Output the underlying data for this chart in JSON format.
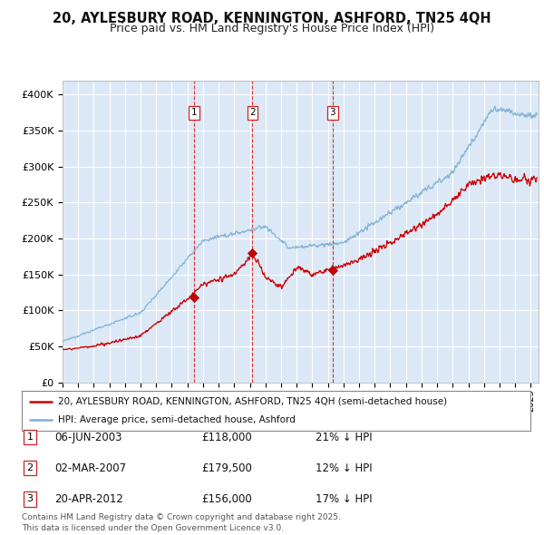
{
  "title": "20, AYLESBURY ROAD, KENNINGTON, ASHFORD, TN25 4QH",
  "subtitle": "Price paid vs. HM Land Registry's House Price Index (HPI)",
  "ylim": [
    0,
    420000
  ],
  "yticks": [
    0,
    50000,
    100000,
    150000,
    200000,
    250000,
    300000,
    350000,
    400000
  ],
  "xlim_start": 1995.0,
  "xlim_end": 2025.5,
  "sale_dates_num": [
    2003.43,
    2007.17,
    2012.3
  ],
  "sale_prices": [
    118000,
    179500,
    156000
  ],
  "sale_labels": [
    "1",
    "2",
    "3"
  ],
  "sale_date_strs": [
    "06-JUN-2003",
    "02-MAR-2007",
    "20-APR-2012"
  ],
  "sale_price_strs": [
    "£118,000",
    "£179,500",
    "£156,000"
  ],
  "sale_hpi_strs": [
    "21% ↓ HPI",
    "12% ↓ HPI",
    "17% ↓ HPI"
  ],
  "hpi_color": "#7bafd4",
  "price_color": "#cc0000",
  "background_color": "#ffffff",
  "plot_bg_color": "#dce8f5",
  "grid_color": "#ffffff",
  "vline_color": "#dd2222",
  "legend_line1": "20, AYLESBURY ROAD, KENNINGTON, ASHFORD, TN25 4QH (semi-detached house)",
  "legend_line2": "HPI: Average price, semi-detached house, Ashford",
  "footer": "Contains HM Land Registry data © Crown copyright and database right 2025.\nThis data is licensed under the Open Government Licence v3.0.",
  "title_fontsize": 10.5,
  "subtitle_fontsize": 9,
  "tick_fontsize": 8,
  "legend_fontsize": 7.5,
  "footer_fontsize": 6.5
}
